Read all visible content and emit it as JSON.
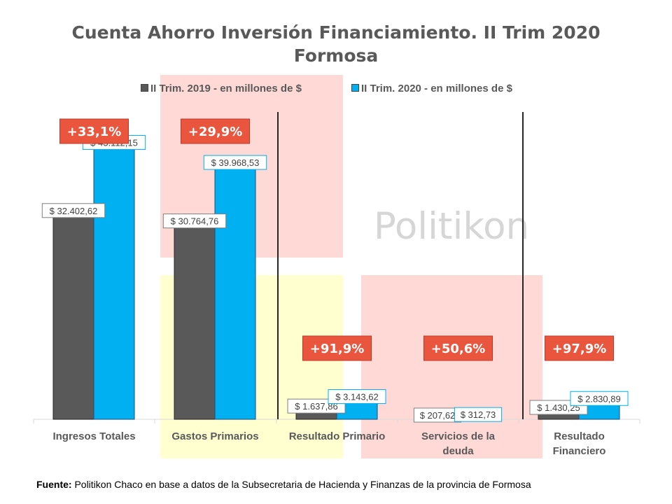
{
  "chart_data": {
    "type": "bar",
    "title": "Cuenta Ahorro Inversión Financiamiento. II Trim 2020",
    "subtitle": "Formosa",
    "categories": [
      "Ingresos Totales",
      "Gastos Primarios",
      "Resultado Primario",
      "Servicios de la deuda",
      "Resultado Financiero"
    ],
    "series": [
      {
        "name": "II Trim. 2019 - en millones de $",
        "color": "#595959",
        "values": [
          32402.62,
          30764.76,
          1637.86,
          207.62,
          1430.25
        ],
        "labels": [
          "$ 32.402,62",
          "$ 30.764,76",
          "$ 1.637,86",
          "$ 207,62",
          "$ 1.430,25"
        ]
      },
      {
        "name": "II Trim. 2020 - en millones de $",
        "color": "#00B0F0",
        "values": [
          43112.15,
          39968.53,
          3143.62,
          312.73,
          2830.89
        ],
        "labels": [
          "$ 43.112,15",
          "$ 39.968,53",
          "$ 3.143,62",
          "$ 312,73",
          "$ 2.830,89"
        ]
      }
    ],
    "variations": [
      "+33,1%",
      "+29,9%",
      "+91,9%",
      "+50,6%",
      "+97,9%"
    ],
    "ylim": [
      0,
      50000
    ],
    "grid": false,
    "legend_position": "top"
  },
  "watermark": "Politikon",
  "footer": {
    "label": "Fuente:",
    "text": " Politikon Chaco en base a datos de la Subsecretaria de Hacienda y Finanzas de la provincia de Formosa"
  },
  "colors": {
    "accent_red": "#E9563D",
    "highlight_pink": "#FFD9D6",
    "highlight_yellow": "#FFFFD0"
  }
}
